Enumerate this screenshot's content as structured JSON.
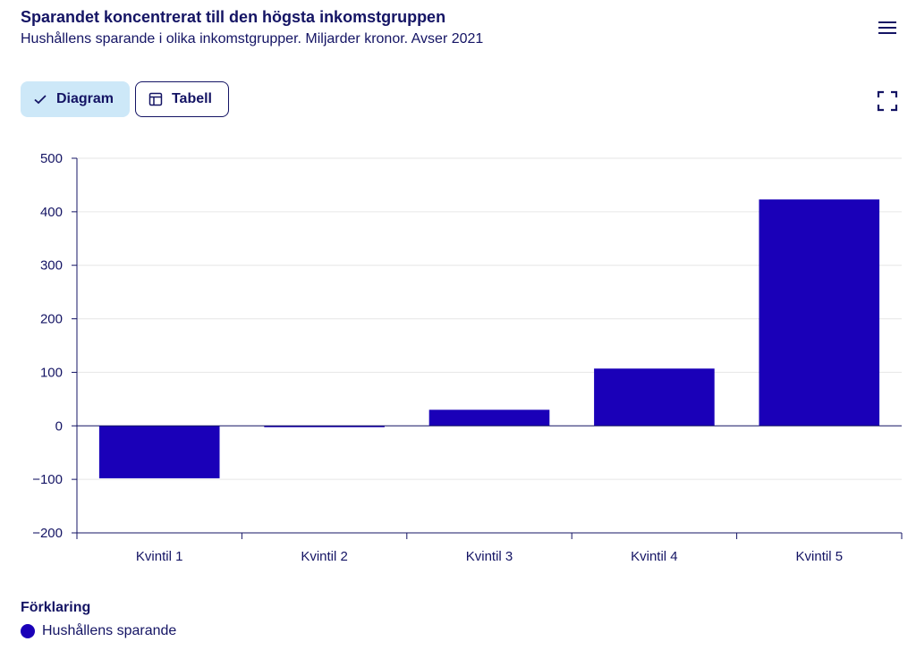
{
  "header": {
    "title": "Sparandet koncentrerat till den högsta inkomstgruppen",
    "subtitle": "Hushållens sparande i olika inkomstgrupper. Miljarder kronor. Avser 2021"
  },
  "tabs": [
    {
      "label": "Diagram",
      "icon": "check-icon",
      "active": true
    },
    {
      "label": "Tabell",
      "icon": "table-icon",
      "active": false
    }
  ],
  "icons": {
    "menu": "hamburger-menu-icon",
    "fullscreen": "fullscreen-icon"
  },
  "legend": {
    "title": "Förklaring"
  },
  "colors": {
    "bar": "#1a00b8",
    "text": "#141464",
    "grid": "#e6e6e6",
    "axis": "#141464"
  },
  "chart_data": {
    "type": "bar",
    "categories": [
      "Kvintil 1",
      "Kvintil 2",
      "Kvintil 3",
      "Kvintil 4",
      "Kvintil 5"
    ],
    "series": [
      {
        "name": "Hushållens sparande",
        "values": [
          -98,
          -2,
          30,
          107,
          423
        ]
      }
    ],
    "ylim": [
      -200,
      500
    ],
    "yticks": [
      -200,
      -100,
      0,
      100,
      200,
      300,
      400,
      500
    ],
    "ytick_labels": [
      "−200",
      "−100",
      "0",
      "100",
      "200",
      "300",
      "400",
      "500"
    ],
    "grid": true,
    "legend_position": "bottom-left"
  }
}
